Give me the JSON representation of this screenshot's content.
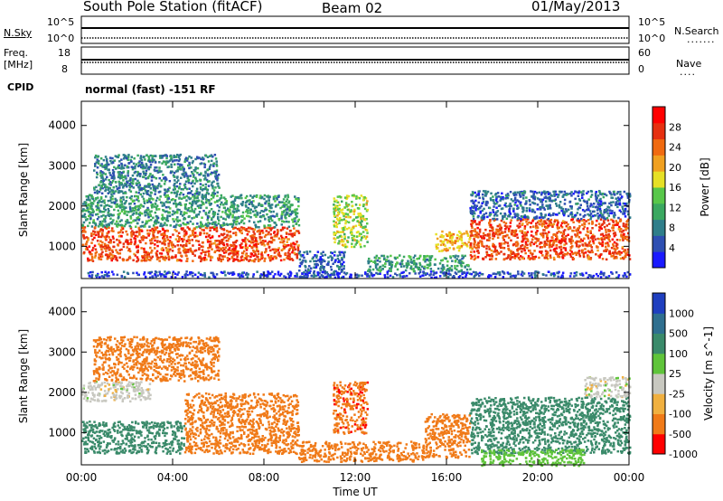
{
  "header": {
    "title": "South Pole Station (fitACF)",
    "beam": "Beam 02",
    "date": "01/May/2013"
  },
  "panels": {
    "nsky_label": "N.Sky",
    "nsearch_label": "N.Search",
    "nsky_ticks": [
      "10^5",
      "10^0"
    ],
    "freq_label_1": "Freq.",
    "freq_label_2": "[MHz]",
    "freq_ticks": [
      "18",
      "8"
    ],
    "nave_label": "Nave",
    "nave_ticks": [
      "60",
      "0"
    ],
    "cpid_label": "CPID",
    "cpid_text": "normal (fast) -151 RF"
  },
  "chart_data": [
    {
      "type": "heatmap",
      "title": "",
      "xlabel": "Time UT",
      "ylabel": "Slant Range [km]",
      "x_ticks": [
        "00:00",
        "04:00",
        "08:00",
        "12:00",
        "16:00",
        "20:00",
        "00:00"
      ],
      "y_ticks": [
        1000,
        2000,
        3000,
        4000
      ],
      "ylim": [
        200,
        4600
      ],
      "xlim_hours": [
        0,
        24
      ],
      "colorbar": {
        "label": "Power [dB]",
        "ticks": [
          4,
          8,
          12,
          16,
          20,
          24,
          28
        ],
        "range": [
          0,
          32
        ],
        "colors": [
          "#1a1aff",
          "#2e4fb2",
          "#2f7e8a",
          "#3aa860",
          "#58c74a",
          "#e6e026",
          "#f0a020",
          "#f06a10",
          "#e63010",
          "#ff0000"
        ]
      },
      "regions": [
        {
          "t": [
            0.0,
            9.5
          ],
          "r": [
            650,
            1500
          ],
          "value": 26
        },
        {
          "t": [
            0.0,
            9.5
          ],
          "r": [
            1500,
            2300
          ],
          "value": 10
        },
        {
          "t": [
            0.5,
            6.0
          ],
          "r": [
            2300,
            3300
          ],
          "value": 8
        },
        {
          "t": [
            9.5,
            11.5
          ],
          "r": [
            250,
            900
          ],
          "value": 6
        },
        {
          "t": [
            11.0,
            12.5
          ],
          "r": [
            1000,
            2300
          ],
          "value": 16
        },
        {
          "t": [
            12.5,
            17.0
          ],
          "r": [
            400,
            800
          ],
          "value": 10
        },
        {
          "t": [
            15.5,
            17.0
          ],
          "r": [
            900,
            1400
          ],
          "value": 20
        },
        {
          "t": [
            17.0,
            24.0
          ],
          "r": [
            700,
            1700
          ],
          "value": 26
        },
        {
          "t": [
            17.0,
            24.0
          ],
          "r": [
            1700,
            2400
          ],
          "value": 6
        },
        {
          "t": [
            0.0,
            24.0
          ],
          "r": [
            250,
            400
          ],
          "value": 4
        }
      ]
    },
    {
      "type": "heatmap",
      "title": "",
      "xlabel": "Time UT",
      "ylabel": "Slant Range [km]",
      "x_ticks": [
        "00:00",
        "04:00",
        "08:00",
        "12:00",
        "16:00",
        "20:00",
        "00:00"
      ],
      "y_ticks": [
        1000,
        2000,
        3000,
        4000
      ],
      "ylim": [
        200,
        4600
      ],
      "xlim_hours": [
        0,
        24
      ],
      "colorbar": {
        "label": "Velocity [m s^-1]",
        "ticks": [
          "1000",
          "500",
          "100",
          "25",
          "-25",
          "-100",
          "-500",
          "-1000"
        ],
        "colors": [
          "#1f3fbf",
          "#2f6f8f",
          "#3a8a6a",
          "#5fc43a",
          "#c8c8c0",
          "#f0b040",
          "#f07a18",
          "#ff0000"
        ]
      },
      "regions": [
        {
          "t": [
            0.0,
            4.5
          ],
          "r": [
            500,
            1300
          ],
          "value": 250
        },
        {
          "t": [
            4.5,
            9.5
          ],
          "r": [
            500,
            2000
          ],
          "value": -300
        },
        {
          "t": [
            0.0,
            3.0
          ],
          "r": [
            1800,
            2300
          ],
          "value": 0
        },
        {
          "t": [
            0.5,
            6.0
          ],
          "r": [
            2300,
            3400
          ],
          "value": -300
        },
        {
          "t": [
            9.5,
            15.0
          ],
          "r": [
            300,
            800
          ],
          "value": -200
        },
        {
          "t": [
            11.0,
            12.5
          ],
          "r": [
            1000,
            2300
          ],
          "value": -400
        },
        {
          "t": [
            15.0,
            17.0
          ],
          "r": [
            400,
            1500
          ],
          "value": -300
        },
        {
          "t": [
            17.0,
            24.0
          ],
          "r": [
            500,
            1900
          ],
          "value": 300
        },
        {
          "t": [
            22.0,
            24.0
          ],
          "r": [
            1900,
            2400
          ],
          "value": 0
        },
        {
          "t": [
            17.5,
            22.0
          ],
          "r": [
            200,
            600
          ],
          "value": 60
        }
      ]
    }
  ]
}
